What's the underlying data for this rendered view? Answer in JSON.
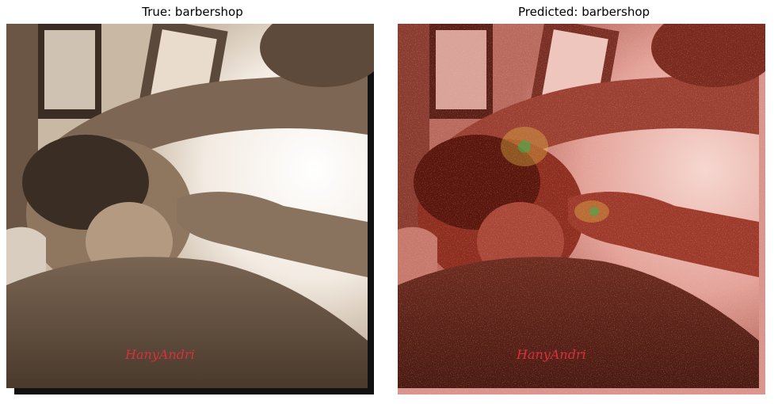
{
  "panels": [
    {
      "title": "True: barbershop",
      "image": "barbershop-photo-sepia",
      "watermark": "HanyAndri"
    },
    {
      "title": "Predicted: barbershop",
      "image": "barbershop-photo-saliency-heatmap-overlay",
      "watermark": "HanyAndri"
    }
  ],
  "colors": {
    "sepia_light": "#f4ede4",
    "sepia_mid": "#a8927a",
    "sepia_dark": "#3e3024",
    "heat_red": "#7a1a12",
    "heat_hot": "#f2c84a",
    "heat_green": "#3fae4e",
    "watermark": "#d8303c"
  }
}
